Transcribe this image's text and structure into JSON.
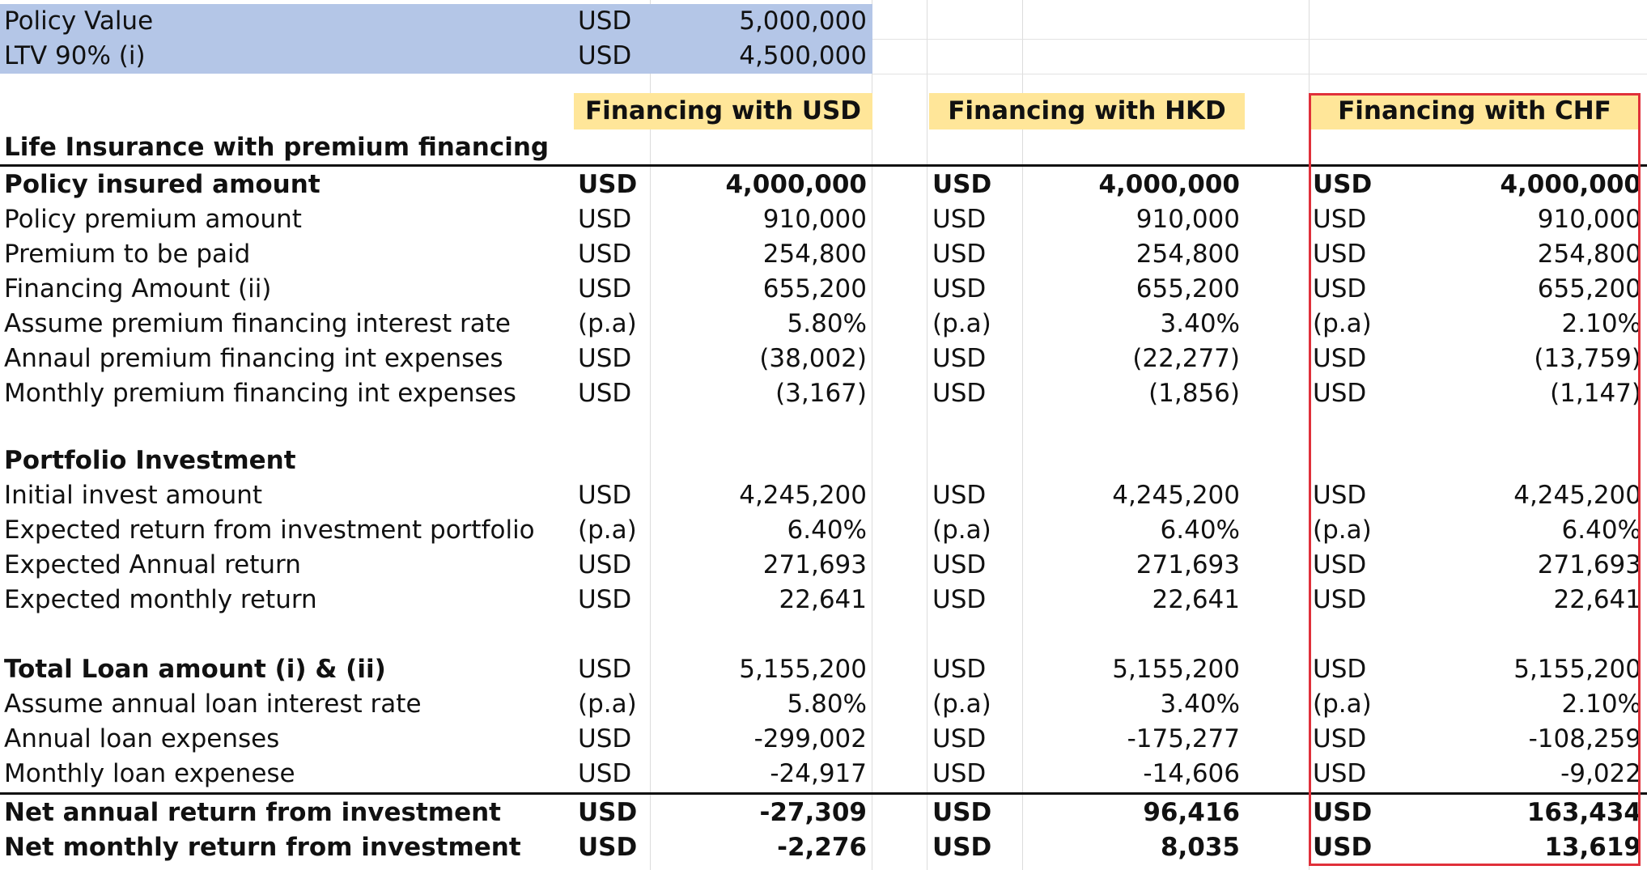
{
  "top": {
    "policy_value": {
      "label": "Policy Value",
      "unit": "USD",
      "value": "5,000,000"
    },
    "ltv": {
      "label": "LTV 90% (i)",
      "unit": "USD",
      "value": "4,500,000"
    }
  },
  "headers": [
    "Financing with USD",
    "Financing with HKD",
    "Financing with CHF"
  ],
  "sections": {
    "life": "Life Insurance with premium financing",
    "portfolio": "Portfolio Investment"
  },
  "life_rows": [
    {
      "label": "Policy insured amount",
      "cells": [
        [
          "USD",
          "4,000,000"
        ],
        [
          "USD",
          "4,000,000"
        ],
        [
          "USD",
          "4,000,000"
        ]
      ]
    },
    {
      "label": "Policy premium amount",
      "cells": [
        [
          "USD",
          "910,000"
        ],
        [
          "USD",
          "910,000"
        ],
        [
          "USD",
          "910,000"
        ]
      ]
    },
    {
      "label": "Premium to be paid",
      "cells": [
        [
          "USD",
          "254,800"
        ],
        [
          "USD",
          "254,800"
        ],
        [
          "USD",
          "254,800"
        ]
      ]
    },
    {
      "label": "Financing Amount  (ii)",
      "cells": [
        [
          "USD",
          "655,200"
        ],
        [
          "USD",
          "655,200"
        ],
        [
          "USD",
          "655,200"
        ]
      ]
    },
    {
      "label": "Assume premium financing interest rate",
      "cells": [
        [
          "(p.a)",
          "5.80%"
        ],
        [
          "(p.a)",
          "3.40%"
        ],
        [
          "(p.a)",
          "2.10%"
        ]
      ]
    },
    {
      "label": "Annaul premium financing int expenses",
      "cells": [
        [
          "USD",
          "(38,002)"
        ],
        [
          "USD",
          "(22,277)"
        ],
        [
          "USD",
          "(13,759)"
        ]
      ]
    },
    {
      "label": "Monthly premium financing int expenses",
      "cells": [
        [
          "USD",
          "(3,167)"
        ],
        [
          "USD",
          "(1,856)"
        ],
        [
          "USD",
          "(1,147)"
        ]
      ]
    }
  ],
  "portfolio_rows": [
    {
      "label": "Initial invest amount",
      "cells": [
        [
          "USD",
          "4,245,200"
        ],
        [
          "USD",
          "4,245,200"
        ],
        [
          "USD",
          "4,245,200"
        ]
      ]
    },
    {
      "label": "Expected return from investment portfolio",
      "cells": [
        [
          "(p.a)",
          "6.40%"
        ],
        [
          "(p.a)",
          "6.40%"
        ],
        [
          "(p.a)",
          "6.40%"
        ]
      ]
    },
    {
      "label": "Expected Annual return",
      "cells": [
        [
          "USD",
          "271,693"
        ],
        [
          "USD",
          "271,693"
        ],
        [
          "USD",
          "271,693"
        ]
      ]
    },
    {
      "label": "Expected monthly return",
      "cells": [
        [
          "USD",
          "22,641"
        ],
        [
          "USD",
          "22,641"
        ],
        [
          "USD",
          "22,641"
        ]
      ]
    }
  ],
  "loan_rows": [
    {
      "label": "Total Loan amount (i) & (ii)",
      "cells": [
        [
          "USD",
          "5,155,200"
        ],
        [
          "USD",
          "5,155,200"
        ],
        [
          "USD",
          "5,155,200"
        ]
      ]
    },
    {
      "label": "Assume annual loan interest rate",
      "cells": [
        [
          "(p.a)",
          "5.80%"
        ],
        [
          "(p.a)",
          "3.40%"
        ],
        [
          "(p.a)",
          "2.10%"
        ]
      ]
    },
    {
      "label": "Annual loan expenses",
      "cells": [
        [
          "USD",
          "-299,002"
        ],
        [
          "USD",
          "-175,277"
        ],
        [
          "USD",
          "-108,259"
        ]
      ]
    },
    {
      "label": "Monthly loan expenese",
      "cells": [
        [
          "USD",
          "-24,917"
        ],
        [
          "USD",
          "-14,606"
        ],
        [
          "USD",
          "-9,022"
        ]
      ]
    }
  ],
  "net_rows": [
    {
      "label": "Net annual return from investment",
      "cells": [
        [
          "USD",
          "-27,309"
        ],
        [
          "USD",
          "96,416"
        ],
        [
          "USD",
          "163,434"
        ]
      ]
    },
    {
      "label": "Net monthly return from investment",
      "cells": [
        [
          "USD",
          "-2,276"
        ],
        [
          "USD",
          "8,035"
        ],
        [
          "USD",
          "13,619"
        ]
      ]
    }
  ],
  "colors": {
    "blue_band": "#b4c6e7",
    "header_yellow": "#ffe699",
    "highlight_red": "#e0303a"
  }
}
